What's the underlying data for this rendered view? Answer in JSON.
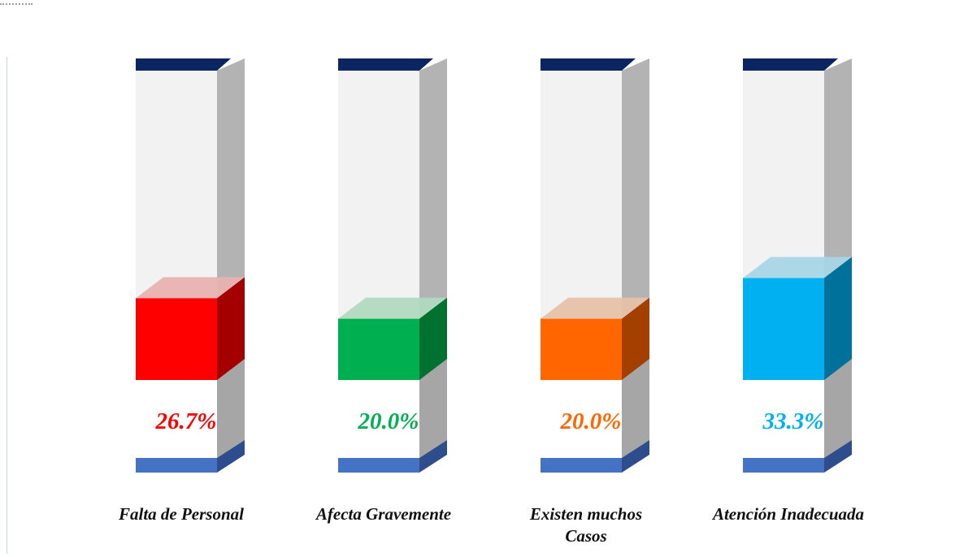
{
  "chart_data": {
    "type": "bar",
    "title": "",
    "xlabel": "",
    "ylabel": "",
    "ylim": [
      0,
      100
    ],
    "categories": [
      [
        "Falta de Personal"
      ],
      [
        "Afecta Gravemente"
      ],
      [
        "Existen muchos",
        "Casos"
      ],
      [
        "Atención Inadecuada"
      ]
    ],
    "values": [
      26.7,
      20.0,
      20.0,
      33.3
    ],
    "value_labels": [
      "26.7%",
      "20.0%",
      "20.0%",
      "33.3%"
    ],
    "colors": {
      "fills": [
        "#ff0000",
        "#00b050",
        "#ff6600",
        "#00b0f0"
      ],
      "sides": [
        "#a50000",
        "#00712f",
        "#a34000",
        "#00719a"
      ],
      "tops": [
        "#e8b1b1",
        "#b2d9c0",
        "#e5c2a8",
        "#a8d5e6"
      ],
      "cylinder_body": "#f2f2f2",
      "cylinder_side": "#b3b3b3",
      "cylinder_side_lower": "#a6a6a6",
      "cap_top": "#0a2561",
      "cap_bottom": "#4472c4",
      "cap_bottom_side": "#2e4d8c"
    },
    "grid": false,
    "legend": "none"
  }
}
